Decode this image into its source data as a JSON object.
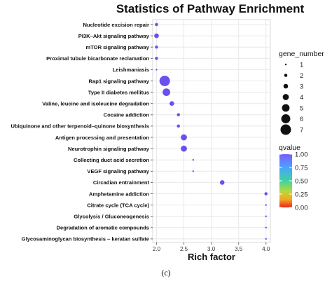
{
  "chart_data": {
    "type": "scatter",
    "title": "Statistics of Pathway Enrichment",
    "xlabel": "Rich factor",
    "ylabel": "",
    "xlim": [
      1.93,
      4.08
    ],
    "xticks": [
      "2.0",
      "2.5",
      "3.0",
      "3.5",
      "4.0"
    ],
    "xtick_values": [
      2.0,
      2.5,
      3.0,
      3.5,
      4.0
    ],
    "grid": true,
    "legend_position": "right",
    "points": [
      {
        "pathway": "Nucleotide excision repair",
        "rich_factor": 2.0,
        "gene_number": 2,
        "qvalue": 0.98
      },
      {
        "pathway": "PI3K–Akt signaling pathway",
        "rich_factor": 2.0,
        "gene_number": 3,
        "qvalue": 0.98
      },
      {
        "pathway": "mTOR signaling pathway",
        "rich_factor": 2.0,
        "gene_number": 2,
        "qvalue": 0.98
      },
      {
        "pathway": "Proximal tubule bicarbonate reclamation",
        "rich_factor": 2.0,
        "gene_number": 2,
        "qvalue": 0.98
      },
      {
        "pathway": "Leishmaniasis",
        "rich_factor": 2.0,
        "gene_number": 1,
        "qvalue": 0.98
      },
      {
        "pathway": "Rap1 signaling pathway",
        "rich_factor": 2.15,
        "gene_number": 7,
        "qvalue": 0.98
      },
      {
        "pathway": "Type II diabetes mellitus",
        "rich_factor": 2.18,
        "gene_number": 5,
        "qvalue": 0.98
      },
      {
        "pathway": "Valine, leucine and isoleucine degradation",
        "rich_factor": 2.28,
        "gene_number": 3,
        "qvalue": 0.98
      },
      {
        "pathway": "Cocaine addiction",
        "rich_factor": 2.4,
        "gene_number": 2,
        "qvalue": 0.98
      },
      {
        "pathway": "Ubiquinone and other terpenoid–quinone biosynthesis",
        "rich_factor": 2.4,
        "gene_number": 2,
        "qvalue": 0.98
      },
      {
        "pathway": "Antigen processing and presentation",
        "rich_factor": 2.5,
        "gene_number": 4,
        "qvalue": 0.98
      },
      {
        "pathway": "Neurotrophin signaling pathway",
        "rich_factor": 2.5,
        "gene_number": 4,
        "qvalue": 0.98
      },
      {
        "pathway": "Collecting duct acid secretion",
        "rich_factor": 2.67,
        "gene_number": 1,
        "qvalue": 0.98
      },
      {
        "pathway": "VEGF signaling pathway",
        "rich_factor": 2.67,
        "gene_number": 1,
        "qvalue": 0.98
      },
      {
        "pathway": "Circadian entrainment",
        "rich_factor": 3.2,
        "gene_number": 3,
        "qvalue": 0.98
      },
      {
        "pathway": "Amphetamine addiction",
        "rich_factor": 4.0,
        "gene_number": 2,
        "qvalue": 0.98
      },
      {
        "pathway": "Citrate cycle (TCA cycle)",
        "rich_factor": 4.0,
        "gene_number": 1,
        "qvalue": 0.98
      },
      {
        "pathway": "Glycolysis / Gluconeogenesis",
        "rich_factor": 4.0,
        "gene_number": 1,
        "qvalue": 0.98
      },
      {
        "pathway": "Degradation of aromatic compounds",
        "rich_factor": 4.0,
        "gene_number": 1,
        "qvalue": 0.98
      },
      {
        "pathway": "Glycosaminoglycan biosynthesis – keratan sulfate",
        "rich_factor": 4.0,
        "gene_number": 1,
        "qvalue": 0.98
      }
    ],
    "size_legend": {
      "title": "gene_number",
      "values": [
        1,
        2,
        3,
        4,
        5,
        6,
        7
      ],
      "labels": [
        "1",
        "2",
        "3",
        "4",
        "5",
        "6",
        "7"
      ]
    },
    "color_legend": {
      "title": "qvalue",
      "ticks": [
        1.0,
        0.75,
        0.5,
        0.25,
        0.0
      ],
      "labels": [
        "1.00",
        "0.75",
        "0.50",
        "0.25",
        "0.00"
      ],
      "colors": [
        "#7a5cff",
        "#4aa3ff",
        "#3fd3a0",
        "#b8d83a",
        "#f5a623",
        "#e8261c"
      ]
    }
  },
  "caption": "(c)"
}
